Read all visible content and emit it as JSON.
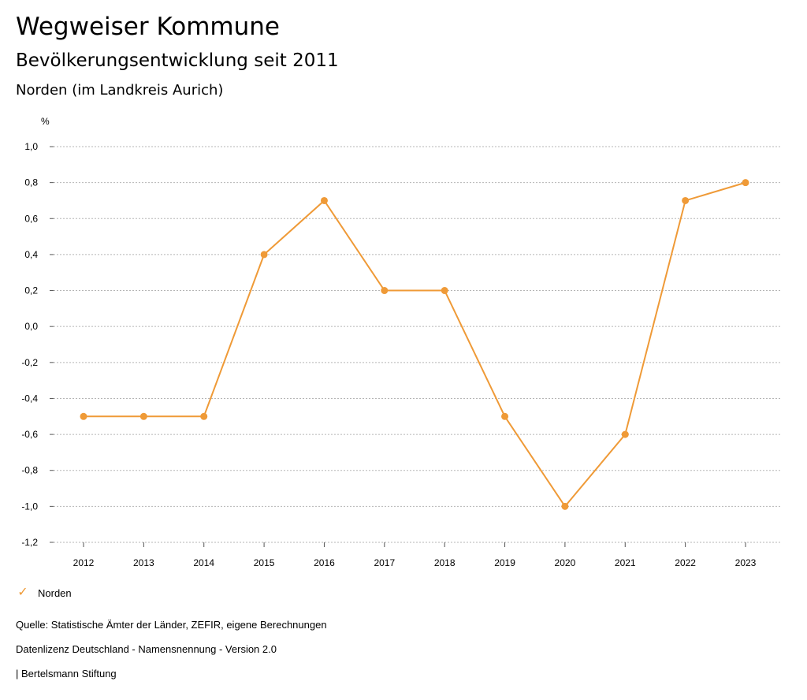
{
  "header": {
    "title": "Wegweiser Kommune",
    "subtitle": "Bevölkerungsentwicklung seit 2011",
    "region": "Norden (im Landkreis Aurich)"
  },
  "chart_data": {
    "type": "line",
    "ylabel": "%",
    "ylim": [
      -1.2,
      1.0
    ],
    "yticks": [
      1.0,
      0.8,
      0.6,
      0.4,
      0.2,
      0.0,
      -0.2,
      -0.4,
      -0.6,
      -0.8,
      -1.0,
      -1.2
    ],
    "ytick_labels": [
      "1,0",
      "0,8",
      "0,6",
      "0,4",
      "0,2",
      "0,0",
      "-0,2",
      "-0,4",
      "-0,6",
      "-0,8",
      "-1,0",
      "-1,2"
    ],
    "categories": [
      "2012",
      "2013",
      "2014",
      "2015",
      "2016",
      "2017",
      "2018",
      "2019",
      "2020",
      "2021",
      "2022",
      "2023"
    ],
    "series": [
      {
        "name": "Norden",
        "color": "#EF9A37",
        "values": [
          -0.5,
          -0.5,
          -0.5,
          0.4,
          0.7,
          0.2,
          0.2,
          -0.5,
          -1.0,
          -0.6,
          0.7,
          0.8
        ]
      }
    ],
    "grid": true,
    "legend": "bottom-left"
  },
  "legend": {
    "items": [
      {
        "label": "Norden",
        "icon": "check-icon",
        "color": "#EF9A37"
      }
    ]
  },
  "footer": {
    "source": "Quelle: Statistische Ämter der Länder, ZEFIR, eigene Berechnungen",
    "license": "Datenlizenz Deutschland - Namensnennung - Version 2.0",
    "publisher": "| Bertelsmann Stiftung"
  }
}
